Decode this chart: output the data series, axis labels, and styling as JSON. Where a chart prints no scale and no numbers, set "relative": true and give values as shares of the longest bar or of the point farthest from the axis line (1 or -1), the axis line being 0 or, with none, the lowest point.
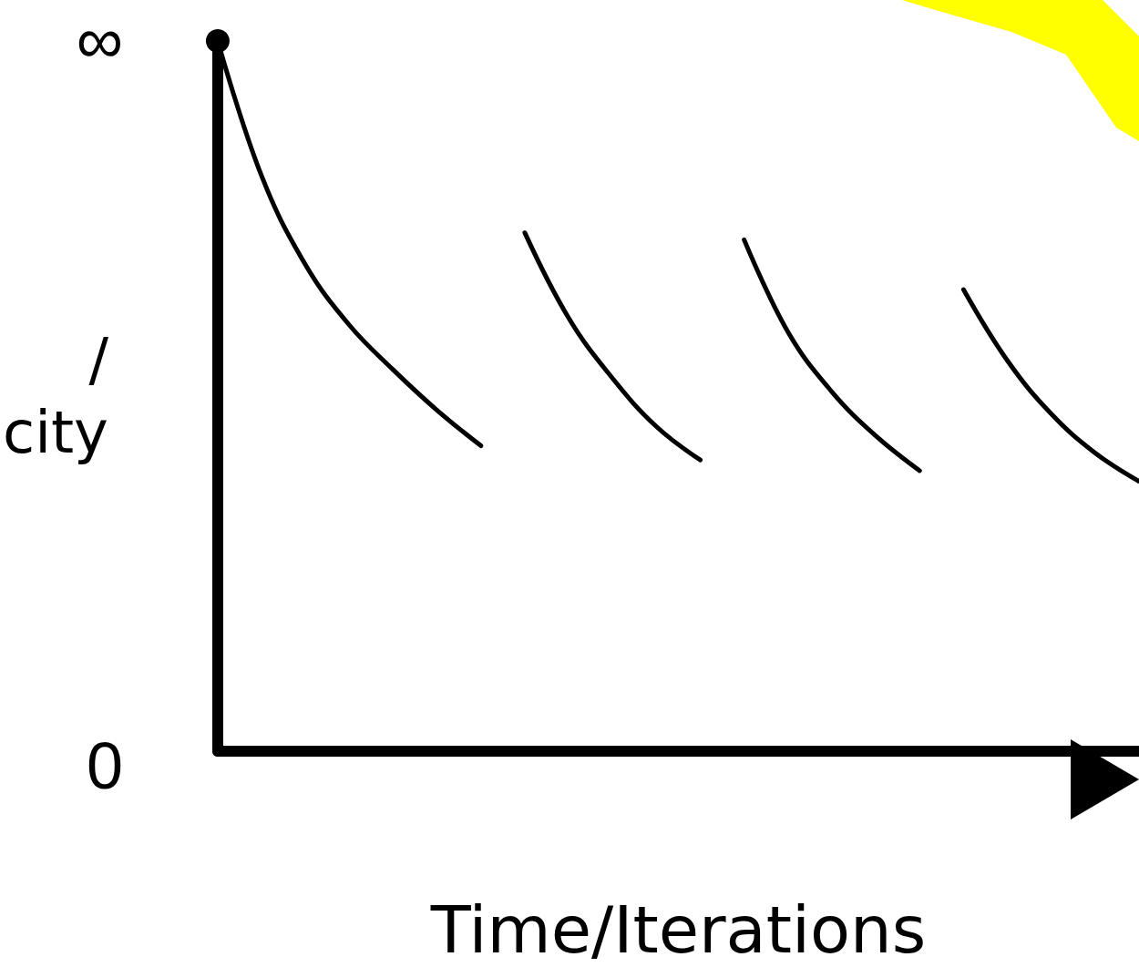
{
  "chart_data": {
    "type": "line",
    "xlabel": "Time/Iterations",
    "ylabel": "/\ncity",
    "categories": [
      null,
      null,
      null,
      null,
      null,
      null,
      null,
      null,
      null,
      null,
      null,
      null,
      null,
      null,
      null,
      null,
      null,
      null,
      null,
      null,
      null,
      null
    ],
    "relative": true,
    "annotations": [
      "∞",
      "0"
    ],
    "series": [
      {
        "color": "#000000",
        "values": [
          1.0,
          0.81,
          0.685,
          0.6,
          0.537,
          0.48,
          0.43,
          null,
          null,
          null,
          null,
          null,
          null,
          null,
          null,
          null,
          null,
          null,
          null,
          null,
          null,
          null
        ]
      },
      {
        "color": "#000000",
        "values": [
          null,
          null,
          null,
          null,
          null,
          null,
          null,
          0.73,
          0.61,
          0.525,
          0.457,
          0.41,
          null,
          null,
          null,
          null,
          null,
          null,
          null,
          null,
          null,
          null
        ]
      },
      {
        "color": "#000000",
        "values": [
          null,
          null,
          null,
          null,
          null,
          null,
          null,
          null,
          null,
          null,
          null,
          null,
          0.72,
          0.59,
          0.506,
          0.444,
          0.395,
          null,
          null,
          null,
          null,
          null
        ]
      },
      {
        "color": "#000000",
        "values": [
          null,
          null,
          null,
          null,
          null,
          null,
          null,
          null,
          null,
          null,
          null,
          null,
          null,
          null,
          null,
          null,
          null,
          0.65,
          0.55,
          0.475,
          0.42,
          0.38
        ]
      }
    ],
    "tick_labels": false,
    "grid": false,
    "marker": "none",
    "line_style": "solid"
  }
}
